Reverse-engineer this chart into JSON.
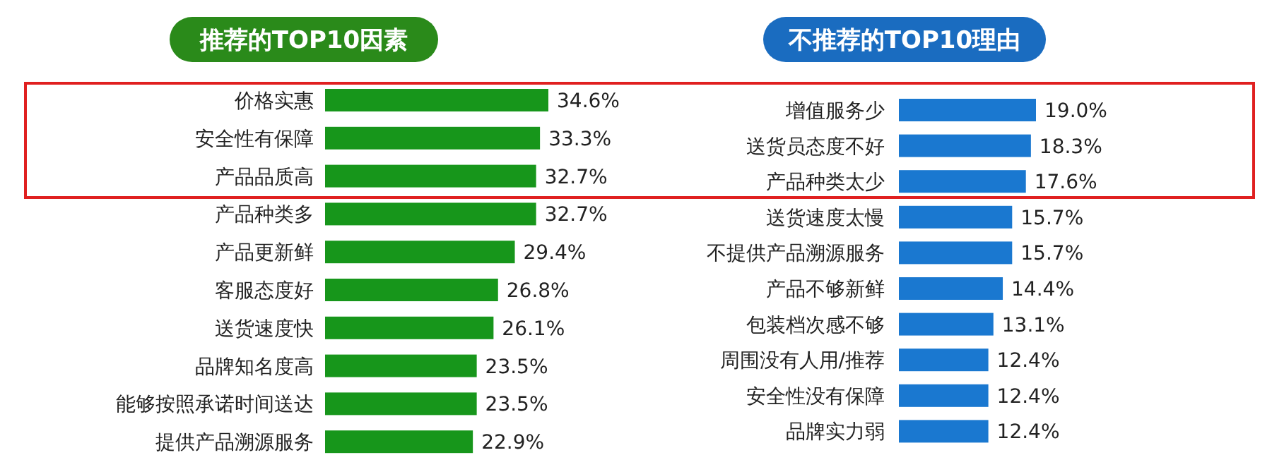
{
  "chart_data": [
    {
      "type": "bar",
      "orientation": "horizontal",
      "title": "推荐的TOP10因素",
      "color": "#17961b",
      "categories": [
        "价格实惠",
        "安全性有保障",
        "产品品质高",
        "产品种类多",
        "产品更新鲜",
        "客服态度好",
        "送货速度快",
        "品牌知名度高",
        "能够按照承诺时间送达",
        "提供产品溯源服务"
      ],
      "values": [
        34.6,
        33.3,
        32.7,
        32.7,
        29.4,
        26.8,
        26.1,
        23.5,
        23.5,
        22.9
      ],
      "value_labels": [
        "34.6%",
        "33.3%",
        "32.7%",
        "32.7%",
        "29.4%",
        "26.8%",
        "26.1%",
        "23.5%",
        "23.5%",
        "22.9%"
      ]
    },
    {
      "type": "bar",
      "orientation": "horizontal",
      "title": "不推荐的TOP10理由",
      "color": "#1a78d0",
      "categories": [
        "增值服务少",
        "送货员态度不好",
        "产品种类太少",
        "送货速度太慢",
        "不提供产品溯源服务",
        "产品不够新鲜",
        "包装档次感不够",
        "周围没有人用/推荐",
        "安全性没有保障",
        "品牌实力弱"
      ],
      "values": [
        19.0,
        18.3,
        17.6,
        15.7,
        15.7,
        14.4,
        13.1,
        12.4,
        12.4,
        12.4
      ],
      "value_labels": [
        "19.0%",
        "18.3%",
        "17.6%",
        "15.7%",
        "15.7%",
        "14.4%",
        "13.1%",
        "12.4%",
        "12.4%",
        "12.4%"
      ]
    }
  ]
}
